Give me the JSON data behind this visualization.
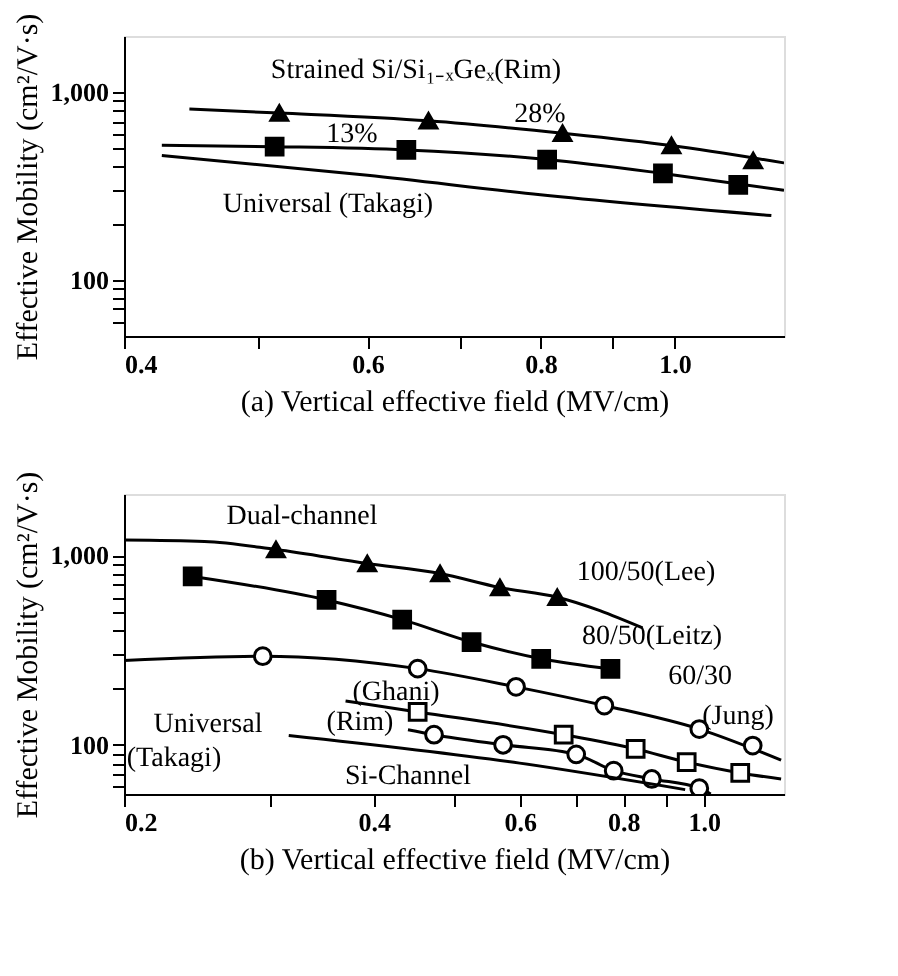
{
  "chart_data": [
    {
      "type": "line",
      "xlabel": "(a) Vertical effective field (MV/cm)",
      "ylabel": "Effective Mobility (cm²/V·s)",
      "log": "xy",
      "grid": false,
      "xlim": [
        0.4,
        1.2
      ],
      "ylim": [
        50,
        2000
      ],
      "xticks": [
        0.4,
        {
          "value": 0.5,
          "label": null
        },
        0.6,
        {
          "value": 0.7,
          "label": null
        },
        0.8,
        {
          "value": 0.9,
          "label": null
        },
        {
          "value": 1.0,
          "label": "1.0"
        }
      ],
      "yticks": [
        {
          "value": 60,
          "label": null
        },
        {
          "value": 70,
          "label": null
        },
        {
          "value": 80,
          "label": null
        },
        {
          "value": 90,
          "label": null
        },
        100,
        {
          "value": 200,
          "label": null
        },
        {
          "value": 300,
          "label": null
        },
        {
          "value": 400,
          "label": null
        },
        {
          "value": 500,
          "label": null
        },
        {
          "value": 600,
          "label": null
        },
        {
          "value": 700,
          "label": null
        },
        {
          "value": 800,
          "label": null
        },
        {
          "value": 900,
          "label": null
        },
        {
          "value": 1000,
          "label": "1,000"
        }
      ],
      "series": [
        {
          "color": "#000000",
          "marker": "none",
          "x": [
            0.446,
            0.518,
            0.664,
            0.83,
            0.995,
            1.2
          ],
          "values": [
            814,
            776,
            705,
            605,
            520,
            420
          ]
        },
        {
          "type": "scatter",
          "color": "#000000",
          "marker": "triangle",
          "x": [
            0.518,
            0.664,
            0.83,
            0.995,
            1.14
          ],
          "values": [
            776,
            705,
            605,
            520,
            433
          ]
        },
        {
          "color": "#000000",
          "marker": "none",
          "x": [
            0.426,
            0.514,
            0.64,
            0.809,
            0.981,
            1.2
          ],
          "values": [
            522,
            513,
            493,
            438,
            369,
            300
          ]
        },
        {
          "type": "scatter",
          "color": "#000000",
          "marker": "square",
          "x": [
            0.514,
            0.64,
            0.809,
            0.981,
            1.112
          ],
          "values": [
            513,
            493,
            438,
            369,
            321
          ]
        },
        {
          "color": "#000000",
          "marker": "none",
          "x": [
            0.426,
            0.6,
            0.8,
            1.175
          ],
          "values": [
            460,
            361,
            284,
            220
          ]
        }
      ],
      "annotations": [
        "Strained Si/Si₁₋ₓGeₓ(Rim)",
        "28%",
        "13%",
        "Universal (Takagi)"
      ]
    },
    {
      "type": "line",
      "xlabel": "(b) Vertical effective field (MV/cm)",
      "ylabel": "Effective Mobility (cm²/V·s)",
      "log": "xy",
      "grid": false,
      "xlim": [
        0.2,
        1.25
      ],
      "ylim": [
        55,
        2100
      ],
      "xticks": [
        0.2,
        {
          "value": 0.3,
          "label": null
        },
        0.4,
        {
          "value": 0.5,
          "label": null
        },
        0.6,
        {
          "value": 0.7,
          "label": null
        },
        0.8,
        {
          "value": 0.9,
          "label": null
        },
        {
          "value": 1.0,
          "label": "1.0"
        }
      ],
      "yticks": [
        {
          "value": 60,
          "label": null
        },
        {
          "value": 70,
          "label": null
        },
        {
          "value": 80,
          "label": null
        },
        {
          "value": 90,
          "label": null
        },
        100,
        {
          "value": 200,
          "label": null
        },
        {
          "value": 300,
          "label": null
        },
        {
          "value": 400,
          "label": null
        },
        {
          "value": 500,
          "label": null
        },
        {
          "value": 600,
          "label": null
        },
        {
          "value": 700,
          "label": null
        },
        {
          "value": 800,
          "label": null
        },
        {
          "value": 900,
          "label": null
        },
        {
          "value": 1000,
          "label": "1,000"
        }
      ],
      "series": [
        {
          "color": "#000000",
          "marker": "none",
          "x": [
            0.2,
            0.25,
            0.305,
            0.393,
            0.481,
            0.568,
            0.666,
            0.844
          ],
          "values": [
            1200,
            1180,
            1071,
            903,
            799,
            674,
            600,
            413
          ]
        },
        {
          "type": "scatter",
          "color": "#000000",
          "marker": "triangle",
          "x": [
            0.305,
            0.393,
            0.481,
            0.568,
            0.666
          ],
          "values": [
            1071,
            903,
            799,
            674,
            600
          ]
        },
        {
          "color": "#000000",
          "marker": "none",
          "x": [
            0.242,
            0.351,
            0.433,
            0.525,
            0.637,
            0.772
          ],
          "values": [
            772,
            580,
            457,
            348,
            284,
            251
          ]
        },
        {
          "type": "scatter",
          "color": "#000000",
          "marker": "square",
          "x": [
            0.242,
            0.351,
            0.433,
            0.525,
            0.637,
            0.772
          ],
          "values": [
            772,
            580,
            457,
            348,
            284,
            251
          ]
        },
        {
          "color": "#000000",
          "marker": "none",
          "x": [
            0.2,
            0.294,
            0.452,
            0.594,
            0.759,
            0.988,
            1.24
          ],
          "values": [
            278,
            293,
            252,
            202,
            161,
            121,
            83
          ]
        },
        {
          "type": "scatter",
          "color": "#ffffff",
          "marker": "circle",
          "x": [
            0.294,
            0.452,
            0.594,
            0.759,
            0.988,
            1.146
          ],
          "values": [
            293,
            252,
            202,
            161,
            121,
            99
          ]
        },
        {
          "color": "#000000",
          "marker": "none",
          "x": [
            0.37,
            0.452,
            0.678,
            0.828,
            0.954,
            1.107,
            1.24
          ],
          "values": [
            170,
            149,
            113,
            95,
            81,
            71,
            66
          ]
        },
        {
          "type": "scatter",
          "color": "#ffffff",
          "marker": "square",
          "x": [
            0.452,
            0.678,
            0.828,
            0.954,
            1.107
          ],
          "values": [
            149,
            113,
            95,
            81,
            71
          ]
        },
        {
          "color": "#000000",
          "marker": "none",
          "x": [
            0.44,
            0.473,
            0.573,
            0.702,
            0.779,
            0.866,
            0.988,
            1.02
          ],
          "values": [
            120,
            113,
            100,
            89,
            73,
            66,
            59,
            55
          ]
        },
        {
          "type": "scatter",
          "color": "#ffffff",
          "marker": "circle",
          "x": [
            0.473,
            0.573,
            0.702,
            0.779,
            0.866,
            0.988
          ],
          "values": [
            113,
            100,
            89,
            73,
            66,
            59
          ]
        },
        {
          "color": "#000000",
          "marker": "none",
          "x": [
            0.316,
            0.6,
            0.95
          ],
          "values": [
            112,
            80,
            58
          ]
        }
      ],
      "annotations": [
        "Dual-channel",
        "100/50(Lee)",
        "80/50(Leitz)",
        "60/30",
        "(Ghani)",
        "(Jung)",
        "Universal",
        "(Rim)",
        "(Takagi)",
        "Si-Channel"
      ]
    }
  ]
}
